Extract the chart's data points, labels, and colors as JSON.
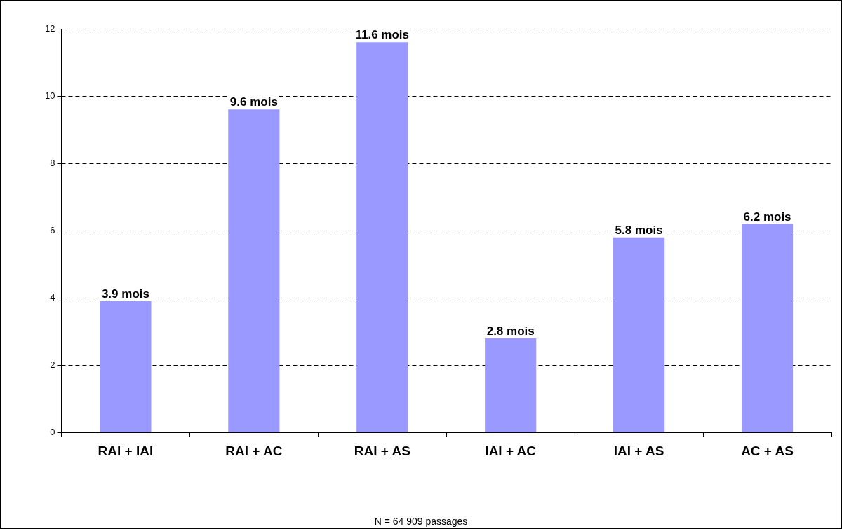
{
  "chart_data": {
    "type": "bar",
    "categories": [
      "RAI + IAI",
      "RAI + AC",
      "RAI + AS",
      "IAI + AC",
      "IAI + AS",
      "AC + AS"
    ],
    "values": [
      3.9,
      9.6,
      11.6,
      2.8,
      5.8,
      6.2
    ],
    "value_labels": [
      "3.9 mois",
      "9.6 mois",
      "11.6 mois",
      "2.8 mois",
      "5.8 mois",
      "6.2 mois"
    ],
    "color": "#9999ff",
    "ylim": [
      0,
      12
    ],
    "yticks": [
      0,
      2,
      4,
      6,
      8,
      10,
      12
    ],
    "grid": "y",
    "legend": false,
    "annotations": [
      "N = 64 909 passages"
    ]
  }
}
